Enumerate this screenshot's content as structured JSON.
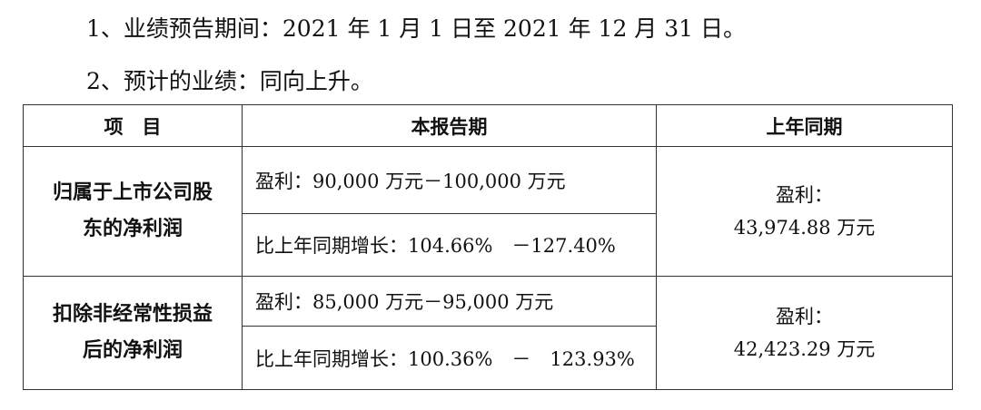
{
  "paragraphs": [
    "1、业绩预告期间：2021 年 1 月 1 日至 2021 年 12 月 31 日。",
    "2、预计的业绩：同向上升。"
  ],
  "table": {
    "header": [
      "项　目",
      "本报告期",
      "上年同期"
    ],
    "rows": [
      {
        "label": "归属于上市公司股东的净利润",
        "current": [
          "盈利：90,000 万元－100,000 万元",
          "比上年同期增长：104.66%　－127.40%"
        ],
        "previous": [
          "盈利：",
          "43,974.88 万元"
        ]
      },
      {
        "label": "扣除非经常性损益后的净利润",
        "current": [
          "盈利：85,000 万元－95,000 万元",
          "比上年同期增长：100.36%　－　123.93%"
        ],
        "previous": [
          "盈利：",
          "42,423.29 万元"
        ]
      }
    ]
  }
}
